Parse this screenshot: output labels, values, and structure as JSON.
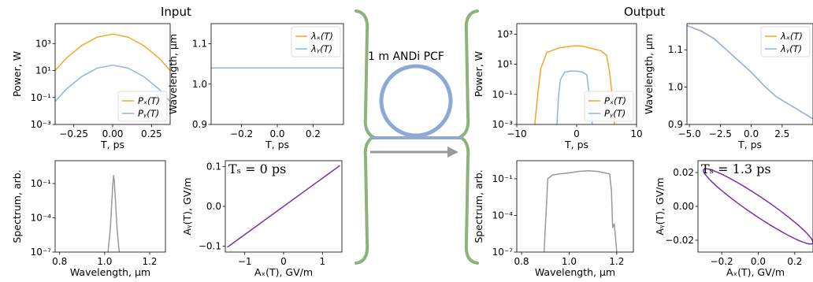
{
  "headers": {
    "input": "Input",
    "output": "Output",
    "fiber": "1 m ANDi PCF"
  },
  "colors": {
    "x": "#f5a623",
    "y": "#8fb4e8",
    "spectrum": "#999999",
    "ellipse": "#7b2fa8",
    "brace": "#8db27a",
    "ring": "#8eaad4",
    "arrow": "#999999"
  },
  "chart_data": [
    {
      "id": "in_power",
      "type": "line",
      "xlabel": "T, ps",
      "ylabel": "Power, W",
      "yscale": "log",
      "xlim": [
        -0.37,
        0.37
      ],
      "ylim": [
        0.001,
        30000
      ],
      "xticks": [
        {
          "v": -0.25,
          "t": "−0.25"
        },
        {
          "v": 0,
          "t": "0.00"
        },
        {
          "v": 0.25,
          "t": "0.25"
        }
      ],
      "yticks": [
        {
          "v": 0.001,
          "t": "10⁻³"
        },
        {
          "v": 0.1,
          "t": "10⁻¹"
        },
        {
          "v": 10,
          "t": "10¹"
        },
        {
          "v": 1000,
          "t": "10³"
        }
      ],
      "legend": {
        "loc": "lower-right",
        "items": [
          "Pₓ(T)",
          "Pᵧ(T)"
        ]
      },
      "series": [
        {
          "name": "Pₓ(T)",
          "color": "x",
          "x": [
            -0.37,
            -0.3,
            -0.2,
            -0.1,
            0,
            0.1,
            0.2,
            0.3,
            0.37
          ],
          "y": [
            10,
            80,
            700,
            3000,
            5000,
            3000,
            700,
            80,
            10
          ]
        },
        {
          "name": "Pᵧ(T)",
          "color": "y",
          "x": [
            -0.37,
            -0.3,
            -0.2,
            -0.1,
            0,
            0.1,
            0.2,
            0.3,
            0.37
          ],
          "y": [
            0.05,
            0.4,
            3.5,
            15,
            25,
            15,
            3.5,
            0.4,
            0.05
          ]
        }
      ]
    },
    {
      "id": "in_wl",
      "type": "line",
      "xlabel": "T, ps",
      "ylabel": "Wavelength, μm",
      "xlim": [
        -0.37,
        0.37
      ],
      "ylim": [
        0.9,
        1.15
      ],
      "xticks": [
        {
          "v": -0.2,
          "t": "−0.2"
        },
        {
          "v": 0,
          "t": "0.0"
        },
        {
          "v": 0.2,
          "t": "0.2"
        }
      ],
      "yticks": [
        {
          "v": 0.9,
          "t": "0.9"
        },
        {
          "v": 1.0,
          "t": "1.0"
        },
        {
          "v": 1.1,
          "t": "1.1"
        }
      ],
      "legend": {
        "loc": "upper-right",
        "items": [
          "λₓ(T)",
          "λᵧ(T)"
        ]
      },
      "series": [
        {
          "name": "λₓ(T)",
          "color": "x",
          "x": [
            -0.37,
            0.37
          ],
          "y": [
            1.04,
            1.04
          ]
        },
        {
          "name": "λᵧ(T)",
          "color": "y",
          "x": [
            -0.37,
            0.37
          ],
          "y": [
            1.04,
            1.04
          ]
        }
      ]
    },
    {
      "id": "in_spec",
      "type": "line",
      "xlabel": "Wavelength, μm",
      "ylabel": "Spectrum, arb.",
      "yscale": "log",
      "xlim": [
        0.78,
        1.27
      ],
      "ylim": [
        1e-07,
        10
      ],
      "xticks": [
        {
          "v": 0.8,
          "t": "0.8"
        },
        {
          "v": 1.0,
          "t": "1.0"
        },
        {
          "v": 1.2,
          "t": "1.2"
        }
      ],
      "yticks": [
        {
          "v": 1e-07,
          "t": "10⁻⁷"
        },
        {
          "v": 0.0001,
          "t": "10⁻⁴"
        },
        {
          "v": 0.1,
          "t": "10⁻¹"
        }
      ],
      "series": [
        {
          "color": "spectrum",
          "x": [
            1.015,
            1.025,
            1.032,
            1.037,
            1.04,
            1.043,
            1.048,
            1.055,
            1.065
          ],
          "y": [
            1e-07,
            1e-05,
            0.003,
            0.15,
            0.5,
            0.15,
            0.003,
            1e-05,
            1e-07
          ]
        }
      ]
    },
    {
      "id": "in_pol",
      "type": "line",
      "xlabel": "Aₓ(T), GV/m",
      "ylabel": "Aᵧ(T), GV/m",
      "xlim": [
        -1.5,
        1.5
      ],
      "ylim": [
        -0.115,
        0.115
      ],
      "xticks": [
        {
          "v": -1,
          "t": "−1"
        },
        {
          "v": 0,
          "t": "0"
        },
        {
          "v": 1,
          "t": "1"
        }
      ],
      "yticks": [
        {
          "v": -0.1,
          "t": "−0.1"
        },
        {
          "v": 0,
          "t": "0.0"
        },
        {
          "v": 0.1,
          "t": "0.1"
        }
      ],
      "annotation": "Tₛ = 0 ps",
      "series": [
        {
          "color": "ellipse",
          "x": [
            -1.45,
            1.45
          ],
          "y": [
            -0.103,
            0.103
          ]
        }
      ]
    },
    {
      "id": "out_power",
      "type": "line",
      "xlabel": "T, ps",
      "ylabel": "Power, W",
      "yscale": "log",
      "xlim": [
        -10,
        10
      ],
      "ylim": [
        0.001,
        5000
      ],
      "xticks": [
        {
          "v": -10,
          "t": "−10"
        },
        {
          "v": 0,
          "t": "0"
        },
        {
          "v": 10,
          "t": "10"
        }
      ],
      "yticks": [
        {
          "v": 0.001,
          "t": "10⁻³"
        },
        {
          "v": 0.1,
          "t": "10⁻¹"
        },
        {
          "v": 10,
          "t": "10¹"
        },
        {
          "v": 1000,
          "t": "10³"
        }
      ],
      "legend": {
        "loc": "lower-right",
        "items": [
          "Pₓ(T)",
          "Pᵧ(T)"
        ]
      },
      "series": [
        {
          "name": "Pₓ(T)",
          "color": "x",
          "x": [
            -7,
            -6.5,
            -6,
            -5,
            -3,
            -1,
            0,
            1,
            3,
            4,
            5,
            5.5,
            6,
            6.3
          ],
          "y": [
            0.001,
            0.1,
            5,
            60,
            120,
            160,
            170,
            160,
            100,
            80,
            40,
            3,
            0.05,
            0.001
          ]
        },
        {
          "name": "Pᵧ(T)",
          "color": "y",
          "x": [
            -3.3,
            -3,
            -2.7,
            -2,
            -1,
            0,
            1,
            1.7,
            2,
            2.3,
            2.6
          ],
          "y": [
            0.001,
            0.1,
            1,
            3,
            3.5,
            3.5,
            3,
            2,
            0.2,
            0.01,
            0.001
          ]
        }
      ]
    },
    {
      "id": "out_wl",
      "type": "line",
      "xlabel": "T, ps",
      "ylabel": "Wavelength, μm",
      "xlim": [
        -5.2,
        5
      ],
      "ylim": [
        0.9,
        1.17
      ],
      "xticks": [
        {
          "v": -5,
          "t": "−5.0"
        },
        {
          "v": -2.5,
          "t": "−2.5"
        },
        {
          "v": 0,
          "t": "0.0"
        },
        {
          "v": 2.5,
          "t": "2.5"
        }
      ],
      "yticks": [
        {
          "v": 0.9,
          "t": "0.9"
        },
        {
          "v": 1.0,
          "t": "1.0"
        },
        {
          "v": 1.1,
          "t": "1.1"
        }
      ],
      "legend": {
        "loc": "upper-right",
        "items": [
          "λₓ(T)",
          "λᵧ(T)"
        ]
      },
      "series": [
        {
          "name": "λₓ(T)",
          "color": "x",
          "x": [
            -5.2,
            -4,
            -3,
            -2,
            -1,
            0,
            1,
            2,
            3,
            4,
            5
          ],
          "y": [
            1.165,
            1.15,
            1.13,
            1.1,
            1.07,
            1.04,
            1.005,
            0.975,
            0.955,
            0.935,
            0.915
          ]
        },
        {
          "name": "λᵧ(T)",
          "color": "y",
          "x": [
            -5.2,
            -4,
            -3,
            -2,
            -1,
            0,
            1,
            2,
            3,
            4,
            5
          ],
          "y": [
            1.165,
            1.149,
            1.129,
            1.1,
            1.07,
            1.04,
            1.005,
            0.975,
            0.955,
            0.935,
            0.915
          ]
        }
      ]
    },
    {
      "id": "out_spec",
      "type": "line",
      "xlabel": "Wavelength, μm",
      "ylabel": "Spectrum, arb.",
      "yscale": "log",
      "xlim": [
        0.78,
        1.27
      ],
      "ylim": [
        1e-07,
        3
      ],
      "xticks": [
        {
          "v": 0.8,
          "t": "0.8"
        },
        {
          "v": 1.0,
          "t": "1.0"
        },
        {
          "v": 1.2,
          "t": "1.2"
        }
      ],
      "yticks": [
        {
          "v": 1e-07,
          "t": "10⁻⁷"
        },
        {
          "v": 0.0001,
          "t": "10⁻⁴"
        },
        {
          "v": 0.1,
          "t": "10⁻¹"
        }
      ],
      "series": [
        {
          "color": "spectrum",
          "x": [
            0.895,
            0.9,
            0.905,
            0.91,
            0.93,
            0.96,
            1.0,
            1.04,
            1.08,
            1.12,
            1.15,
            1.17,
            1.178,
            1.183,
            1.19,
            1.2
          ],
          "y": [
            1e-07,
            1e-05,
            0.001,
            0.1,
            0.2,
            0.25,
            0.3,
            0.4,
            0.45,
            0.4,
            0.3,
            0.25,
            0.01,
            1e-05,
            2e-05,
            1e-07
          ]
        }
      ]
    },
    {
      "id": "out_pol",
      "type": "line",
      "xlabel": "Aₓ(T), GV/m",
      "ylabel": "Aᵧ(T), GV/m",
      "xlim": [
        -0.33,
        0.3
      ],
      "ylim": [
        -0.027,
        0.027
      ],
      "xticks": [
        {
          "v": -0.2,
          "t": "−0.2"
        },
        {
          "v": 0,
          "t": "0.0"
        },
        {
          "v": 0.2,
          "t": "0.2"
        }
      ],
      "yticks": [
        {
          "v": -0.02,
          "t": "−0.02"
        },
        {
          "v": 0,
          "t": "0.00"
        },
        {
          "v": 0.02,
          "t": "0.02"
        }
      ],
      "annotation": "Tₛ = 1.3 ps",
      "ellipse": {
        "color": "ellipse",
        "a": 0.3,
        "b": 0.045,
        "tilt": 0.0185,
        "cx": 0,
        "cy": 0
      }
    }
  ]
}
